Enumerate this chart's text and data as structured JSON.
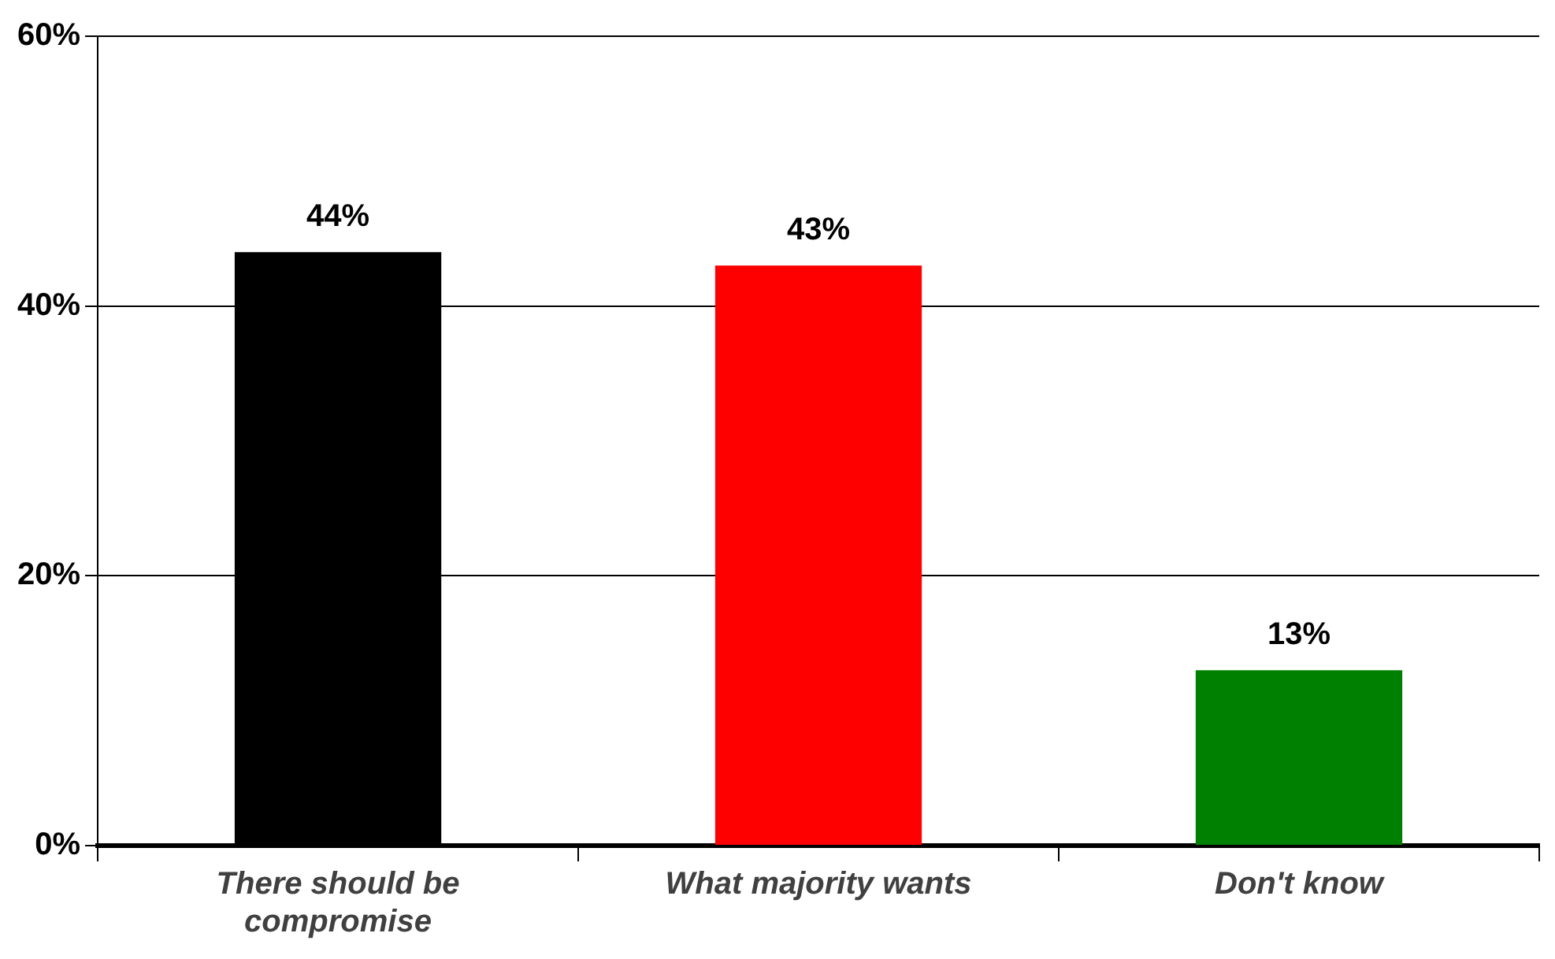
{
  "chart_data": {
    "type": "bar",
    "categories": [
      "There should be compromise",
      "What majority wants",
      "Don't know"
    ],
    "values": [
      44,
      43,
      13
    ],
    "colors": [
      "#000000",
      "#ff0000",
      "#008000"
    ],
    "value_labels": [
      "44%",
      "43%",
      "13%"
    ],
    "ylim": [
      0,
      60
    ],
    "yticks": [
      {
        "value": 0,
        "label": "0%"
      },
      {
        "value": 20,
        "label": "20%"
      },
      {
        "value": 40,
        "label": "40%"
      },
      {
        "value": 60,
        "label": "60%"
      }
    ],
    "grid": "y",
    "legend": false
  }
}
